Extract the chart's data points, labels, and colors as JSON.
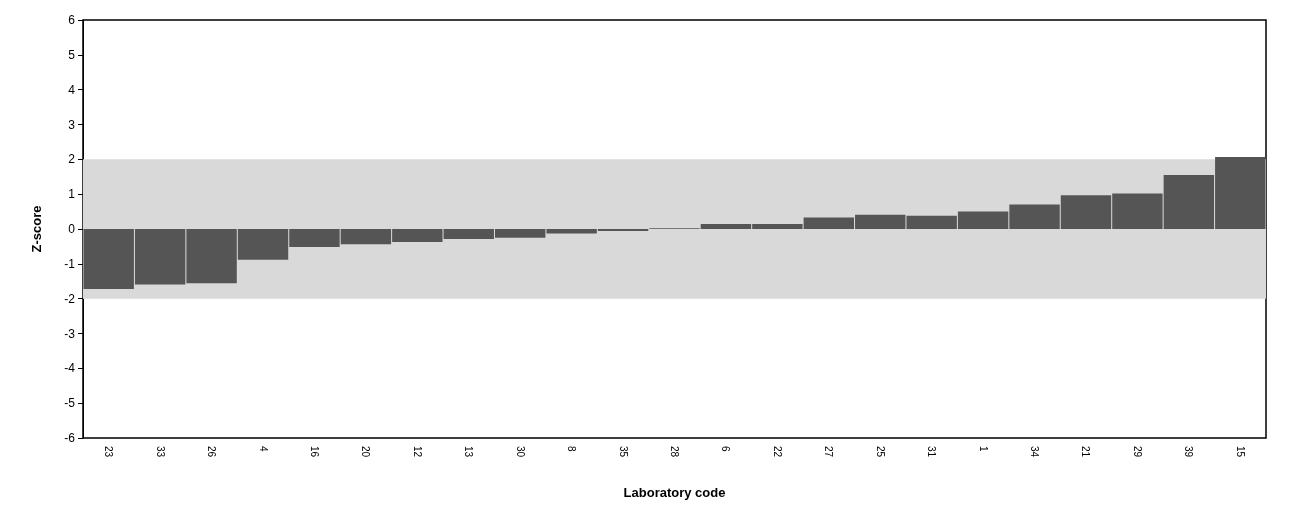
{
  "chart_data": {
    "type": "bar",
    "xlabel": "Laboratory code",
    "ylabel": "Z-score",
    "categories": [
      "23",
      "33",
      "26",
      "4",
      "16",
      "20",
      "12",
      "13",
      "30",
      "8",
      "35",
      "28",
      "6",
      "22",
      "27",
      "25",
      "31",
      "1",
      "34",
      "21",
      "29",
      "39",
      "15"
    ],
    "values": [
      -1.72,
      -1.59,
      -1.56,
      -0.88,
      -0.52,
      -0.44,
      -0.37,
      -0.29,
      -0.25,
      -0.13,
      -0.06,
      0.02,
      0.14,
      0.14,
      0.33,
      0.41,
      0.38,
      0.5,
      0.7,
      0.97,
      1.02,
      1.55,
      2.07
    ],
    "color": "#555555",
    "ylim": [
      -6,
      6
    ],
    "yticks": [
      -6,
      -5,
      -4,
      -3,
      -2,
      -1,
      0,
      1,
      2,
      3,
      4,
      5,
      6
    ],
    "bands": [
      {
        "axis": "y",
        "from": -2,
        "to": 2,
        "color": "#d9d9d9"
      }
    ],
    "grid": false
  }
}
